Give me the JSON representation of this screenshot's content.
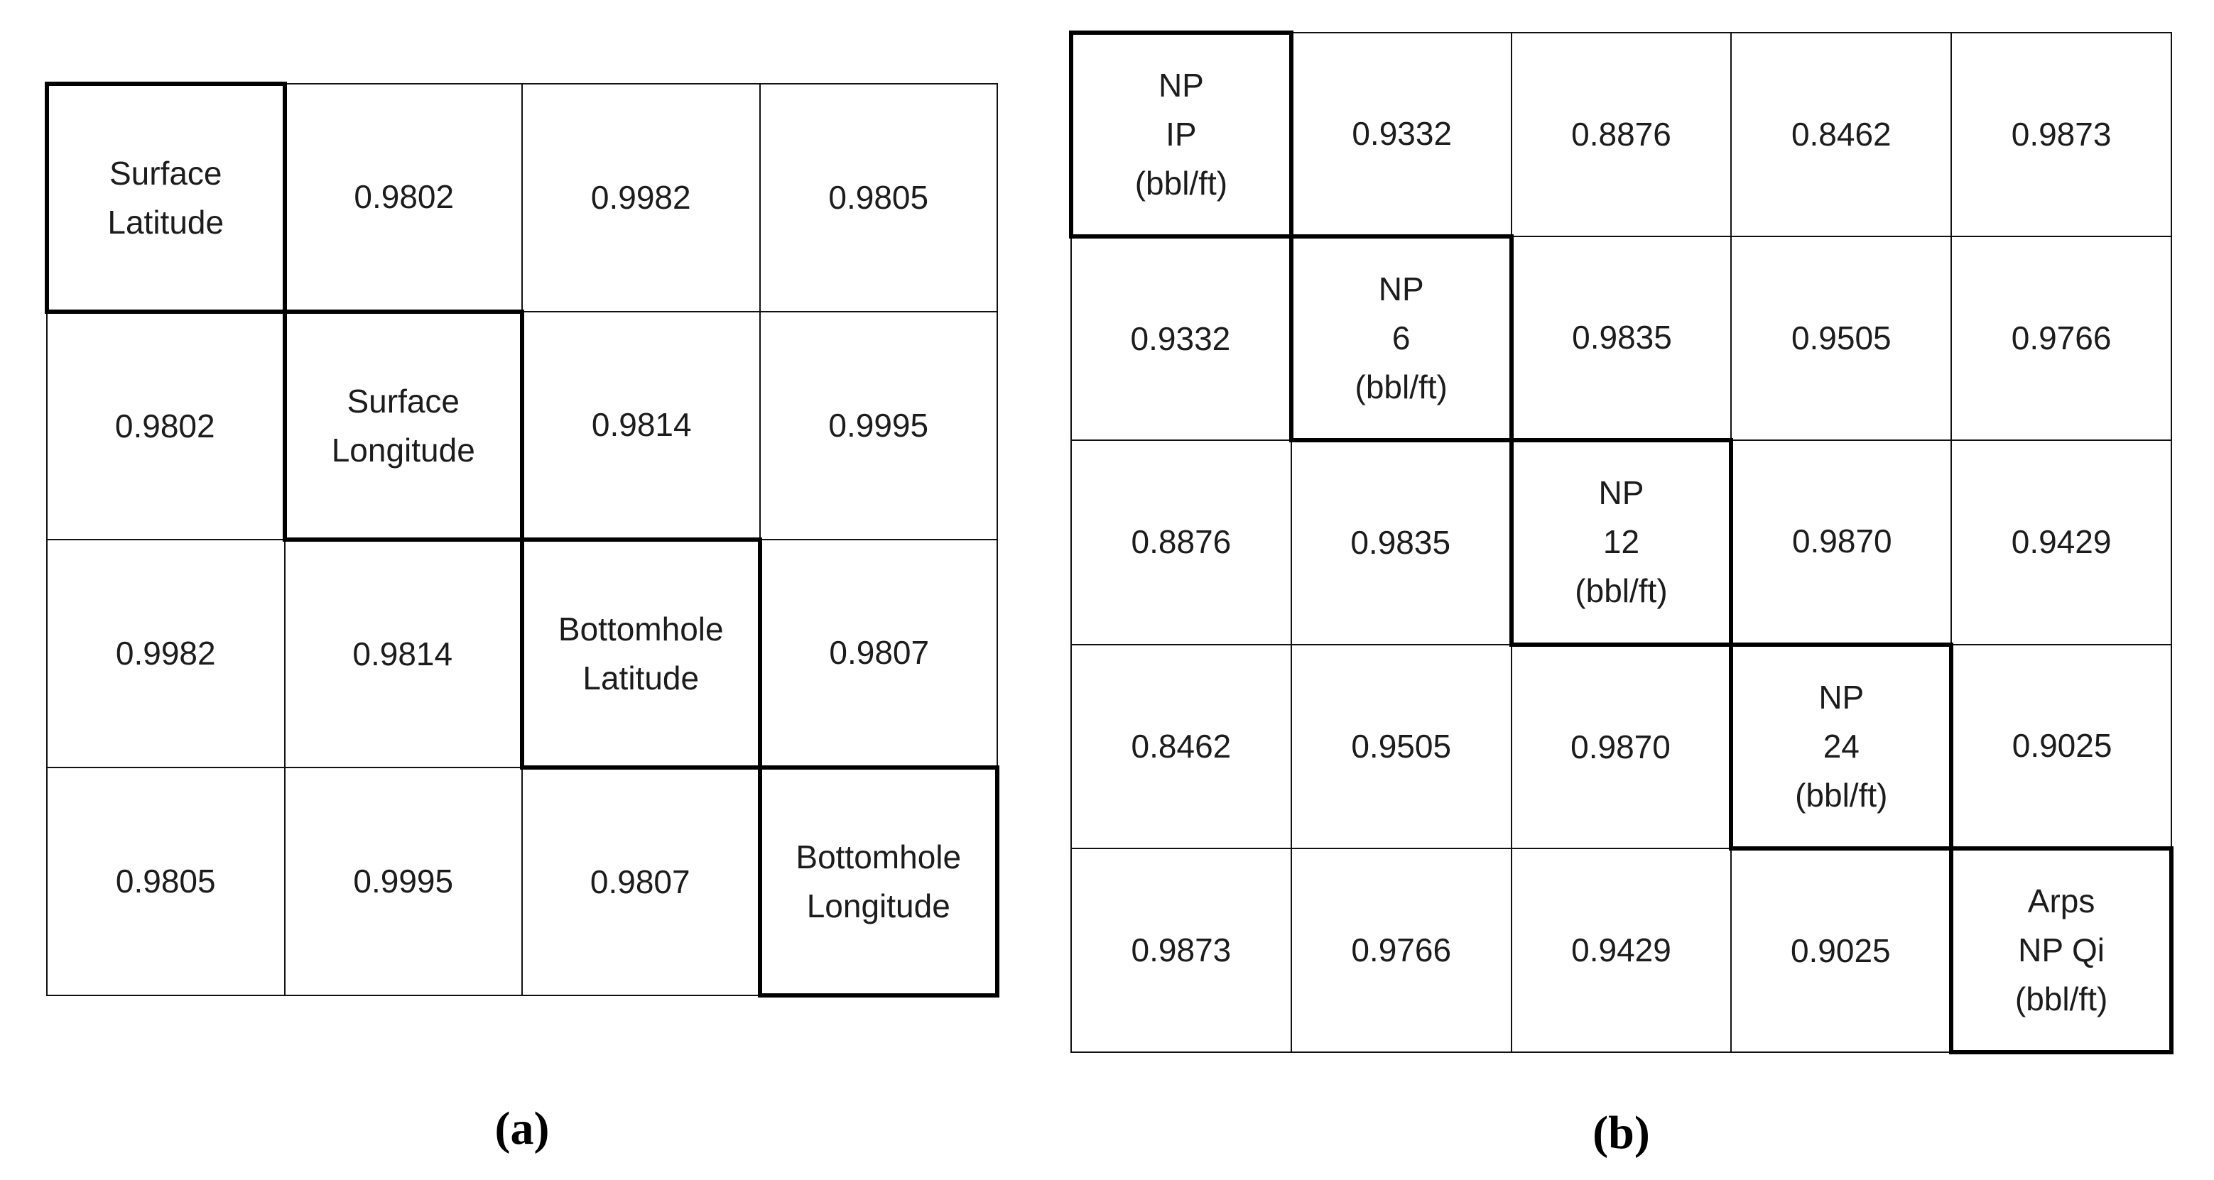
{
  "figure": {
    "panel_a": {
      "caption": "(a)",
      "matrix_type": "correlation",
      "variables": [
        "Surface Latitude",
        "Surface Longitude",
        "Bottomhole Latitude",
        "Bottomhole Longitude"
      ],
      "rows": [
        [
          "Surface\nLatitude",
          "0.9802",
          "0.9982",
          "0.9805"
        ],
        [
          "0.9802",
          "Surface\nLongitude",
          "0.9814",
          "0.9995"
        ],
        [
          "0.9982",
          "0.9814",
          "Bottomhole\nLatitude",
          "0.9807"
        ],
        [
          "0.9805",
          "0.9995",
          "0.9807",
          "Bottomhole\nLongitude"
        ]
      ]
    },
    "panel_b": {
      "caption": "(b)",
      "matrix_type": "correlation",
      "variables": [
        "NP IP (bbl/ft)",
        "NP 6 (bbl/ft)",
        "NP 12 (bbl/ft)",
        "NP 24 (bbl/ft)",
        "Arps NP Qi (bbl/ft)"
      ],
      "rows": [
        [
          "NP\nIP\n(bbl/ft)",
          "0.9332",
          "0.8876",
          "0.8462",
          "0.9873"
        ],
        [
          "0.9332",
          "NP\n6\n(bbl/ft)",
          "0.9835",
          "0.9505",
          "0.9766"
        ],
        [
          "0.8876",
          "0.9835",
          "NP\n12\n(bbl/ft)",
          "0.9870",
          "0.9429"
        ],
        [
          "0.8462",
          "0.9505",
          "0.9870",
          "NP\n24\n(bbl/ft)",
          "0.9025"
        ],
        [
          "0.9873",
          "0.9766",
          "0.9429",
          "0.9025",
          "Arps\nNP Qi\n(bbl/ft)"
        ]
      ]
    },
    "colors": {
      "background": "#ffffff",
      "grid_line": "#111111",
      "diagonal_border": "#000000",
      "text": "#1c1c1c"
    }
  }
}
